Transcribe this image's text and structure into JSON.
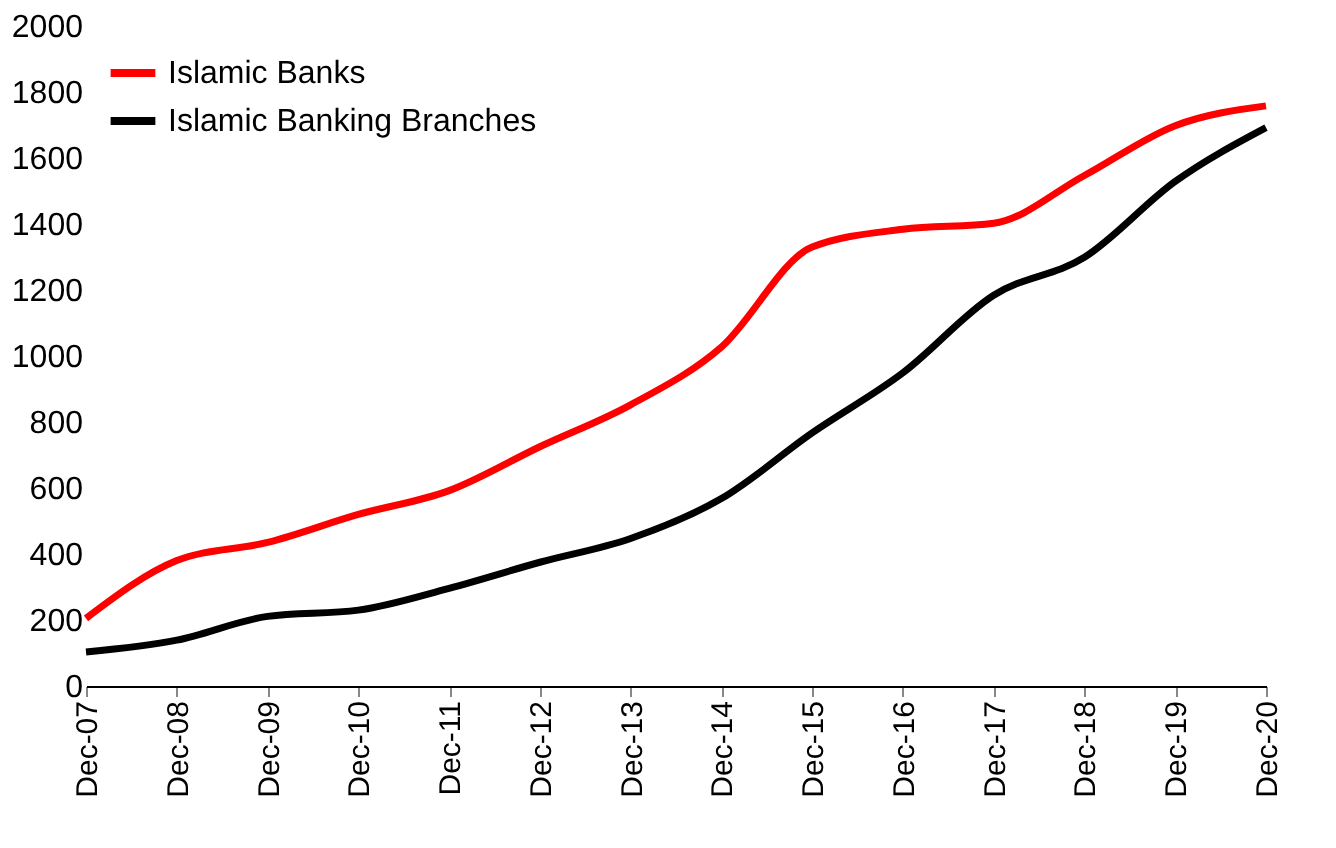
{
  "chart_data": {
    "type": "line",
    "categories": [
      "Dec-07",
      "Dec-08",
      "Dec-09",
      "Dec-10",
      "Dec-11",
      "Dec-12",
      "Dec-13",
      "Dec-14",
      "Dec-15",
      "Dec-16",
      "Dec-17",
      "Dec-18",
      "Dec-19",
      "Dec-20"
    ],
    "series": [
      {
        "name": "Islamic Banks",
        "color": "#ff0000",
        "values": [
          205,
          380,
          435,
          520,
          592,
          725,
          852,
          1027,
          1330,
          1384,
          1402,
          1547,
          1698,
          1758
        ]
      },
      {
        "name": "Islamic Banking Branches",
        "color": "#000000",
        "values": [
          103,
          139,
          211,
          230,
          296,
          375,
          447,
          568,
          767,
          949,
          1184,
          1299,
          1529,
          1692
        ]
      }
    ],
    "ylim": [
      0,
      2000
    ],
    "yticks": [
      0,
      200,
      400,
      600,
      800,
      1000,
      1200,
      1400,
      1600,
      1800,
      2000
    ],
    "grid": false,
    "legend": "top left",
    "marker": "none",
    "line_style": "solid"
  }
}
